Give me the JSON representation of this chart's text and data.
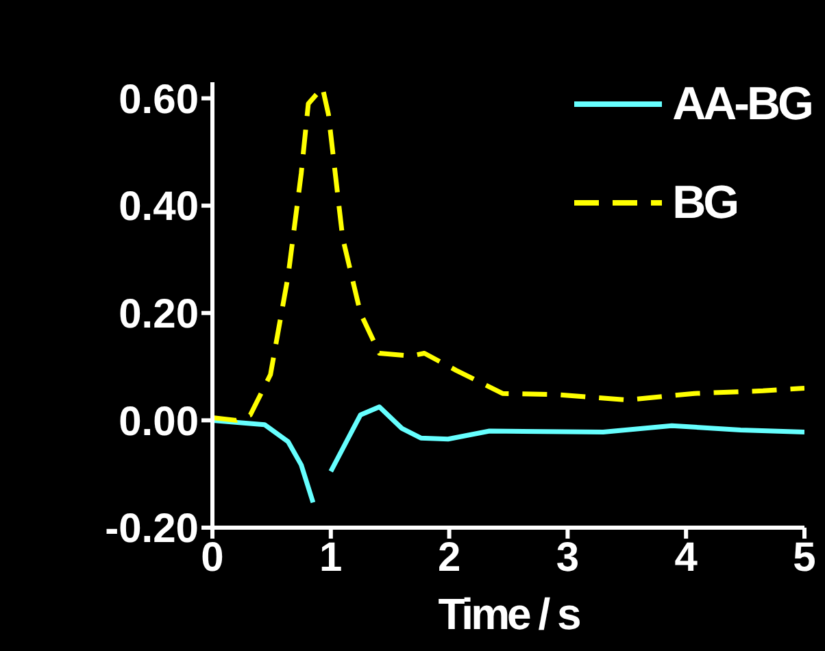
{
  "chart_data": {
    "type": "line",
    "xlabel": "Time / s",
    "xlim": [
      0,
      5
    ],
    "xticks": [
      0,
      1,
      2,
      3,
      4,
      5
    ],
    "ylim": [
      -0.2,
      0.63
    ],
    "yticks": [
      {
        "value": 0.6,
        "label": "0.60"
      },
      {
        "value": 0.4,
        "label": "0.40"
      },
      {
        "value": 0.2,
        "label": "0.20"
      },
      {
        "value": 0,
        "label": "0.00"
      },
      {
        "value": -0.2,
        "label": "-0.20"
      }
    ],
    "legend": "top right",
    "grid": false,
    "marker": "none",
    "series": [
      {
        "name": "AA-BG",
        "color": "#66ffff",
        "line_style": "solid",
        "x": [
          0,
          0.44,
          0.64,
          0.75,
          0.85,
          0.92,
          1.0,
          1.25,
          1.41,
          1.6,
          1.76,
          1.99,
          2.34,
          3.3,
          3.88,
          4.46,
          5.0
        ],
        "values": [
          0,
          -0.008,
          -0.04,
          -0.083,
          -0.153,
          null,
          -0.095,
          0.01,
          0.025,
          -0.015,
          -0.033,
          -0.035,
          -0.02,
          -0.022,
          -0.01,
          -0.018,
          -0.022
        ]
      },
      {
        "name": "BG",
        "color": "#ffff00",
        "line_style": "dashed",
        "x": [
          0,
          0.2,
          0.32,
          0.49,
          0.64,
          0.75,
          0.81,
          0.93,
          0.98,
          1.1,
          1.25,
          1.41,
          1.68,
          1.79,
          2.06,
          2.45,
          2.9,
          3.5,
          4.07,
          4.65,
          5.0
        ],
        "values": [
          0.005,
          0,
          0.01,
          0.085,
          0.27,
          0.46,
          0.59,
          0.62,
          0.57,
          0.34,
          0.2,
          0.125,
          0.12,
          0.125,
          0.093,
          0.05,
          0.048,
          0.038,
          0.05,
          0.055,
          0.06
        ]
      }
    ]
  }
}
